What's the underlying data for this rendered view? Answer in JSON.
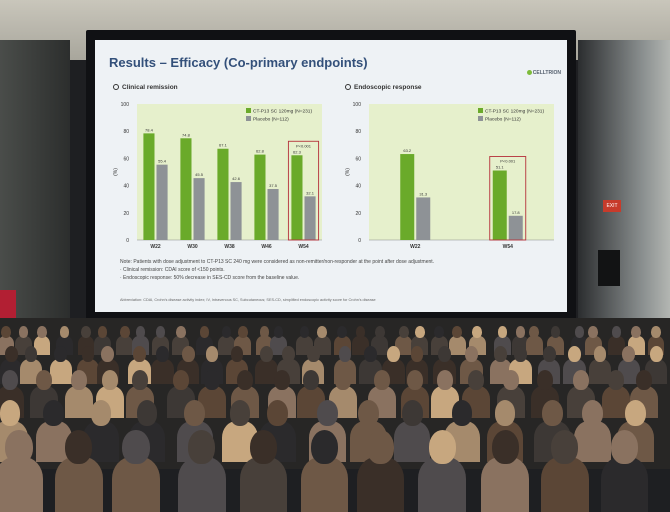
{
  "slide": {
    "title": "Results – Efficacy (Co-primary endpoints)",
    "logo": "CELLTRION",
    "left_subtitle": "Clinical remission",
    "right_subtitle": "Endoscopic response",
    "note": "Note: Patients with dose adjustment to CT-P13 SC 240 mg were considered as non-remitter/non-responder at the point after dose adjustment.",
    "bullet1": "· Clinical remission: CDAI score of <150 points.",
    "bullet2": "· Endoscopic response: 50% decrease in SES-CD score from the baseline value.",
    "abbreviation": "Abbreviation: CDAI, Crohn's disease activity index; IV, Intravenous SC, Subcutaneous; SES-CD, simplified endoscopic activity score for Crohn's disease"
  },
  "colors": {
    "active": "#6aaa2a",
    "placebo": "#8e9296",
    "plot_bg": "#e6f0cc",
    "highlight": "#b5303a"
  },
  "chart_data": [
    {
      "type": "bar",
      "categories": [
        "W22",
        "W30",
        "W38",
        "W46",
        "W54"
      ],
      "series": [
        {
          "name": "CT-P13 SC 120mg (N=231)",
          "values": [
            78.4,
            74.8,
            67.1,
            62.8,
            62.3
          ]
        },
        {
          "name": "Placebo (N=112)",
          "values": [
            55.4,
            45.5,
            42.6,
            37.5,
            32.1
          ]
        }
      ],
      "ylabel": "(%)",
      "ylim": [
        0,
        100
      ],
      "yticks": [
        0,
        20,
        40,
        60,
        80,
        100
      ],
      "annotation": {
        "text": "P<0.001",
        "category": "W54"
      }
    },
    {
      "type": "bar",
      "categories": [
        "W22",
        "W54"
      ],
      "series": [
        {
          "name": "CT-P13 SC 120mg (N=231)",
          "values": [
            63.2,
            51.1
          ]
        },
        {
          "name": "Placebo (N=112)",
          "values": [
            31.3,
            17.8
          ]
        }
      ],
      "ylabel": "(%)",
      "ylim": [
        0,
        100
      ],
      "yticks": [
        0,
        20,
        40,
        60,
        80,
        100
      ],
      "annotation": {
        "text": "P<0.001",
        "category": "W54"
      }
    }
  ]
}
